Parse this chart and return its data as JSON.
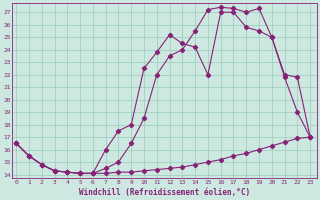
{
  "xlabel": "Windchill (Refroidissement éolien,°C)",
  "bg_color": "#cce8e0",
  "grid_color": "#99ccbb",
  "line_color": "#882277",
  "x_ticks": [
    0,
    1,
    2,
    3,
    4,
    5,
    6,
    7,
    8,
    9,
    10,
    11,
    12,
    13,
    14,
    15,
    16,
    17,
    18,
    19,
    20,
    21,
    22,
    23
  ],
  "y_ticks": [
    14,
    15,
    16,
    17,
    18,
    19,
    20,
    21,
    22,
    23,
    24,
    25,
    26,
    27
  ],
  "xlim": [
    -0.3,
    23.5
  ],
  "ylim": [
    13.7,
    27.7
  ],
  "series1_x": [
    0,
    1,
    2,
    3,
    4,
    5,
    6,
    7,
    8,
    9,
    10,
    11,
    12,
    13,
    14,
    15,
    16,
    17,
    18,
    19,
    20,
    21,
    22,
    23
  ],
  "series1_y": [
    16.5,
    15.5,
    14.8,
    14.3,
    14.2,
    14.1,
    14.1,
    14.1,
    14.2,
    14.2,
    14.3,
    14.4,
    14.5,
    14.6,
    14.8,
    15.0,
    15.2,
    15.5,
    15.7,
    16.0,
    16.3,
    16.6,
    16.9,
    17.0
  ],
  "series2_x": [
    0,
    1,
    2,
    3,
    4,
    5,
    6,
    7,
    8,
    9,
    10,
    11,
    12,
    13,
    14,
    15,
    16,
    17,
    18,
    19,
    20,
    21,
    22,
    23
  ],
  "series2_y": [
    16.5,
    15.5,
    14.8,
    14.3,
    14.2,
    14.1,
    14.1,
    14.5,
    15.0,
    16.5,
    18.5,
    22.0,
    23.5,
    24.0,
    25.5,
    27.2,
    27.4,
    27.3,
    27.0,
    27.3,
    25.0,
    21.8,
    19.0,
    17.0
  ],
  "series3_x": [
    0,
    1,
    2,
    3,
    4,
    5,
    6,
    7,
    8,
    9,
    10,
    11,
    12,
    13,
    14,
    15,
    16,
    17,
    18,
    19,
    20,
    21,
    22,
    23
  ],
  "series3_y": [
    16.5,
    15.5,
    14.8,
    14.3,
    14.2,
    14.1,
    14.1,
    16.0,
    17.5,
    18.0,
    22.5,
    23.8,
    25.2,
    24.5,
    24.2,
    22.0,
    27.0,
    27.0,
    25.8,
    25.5,
    25.0,
    22.0,
    21.8,
    17.0
  ]
}
